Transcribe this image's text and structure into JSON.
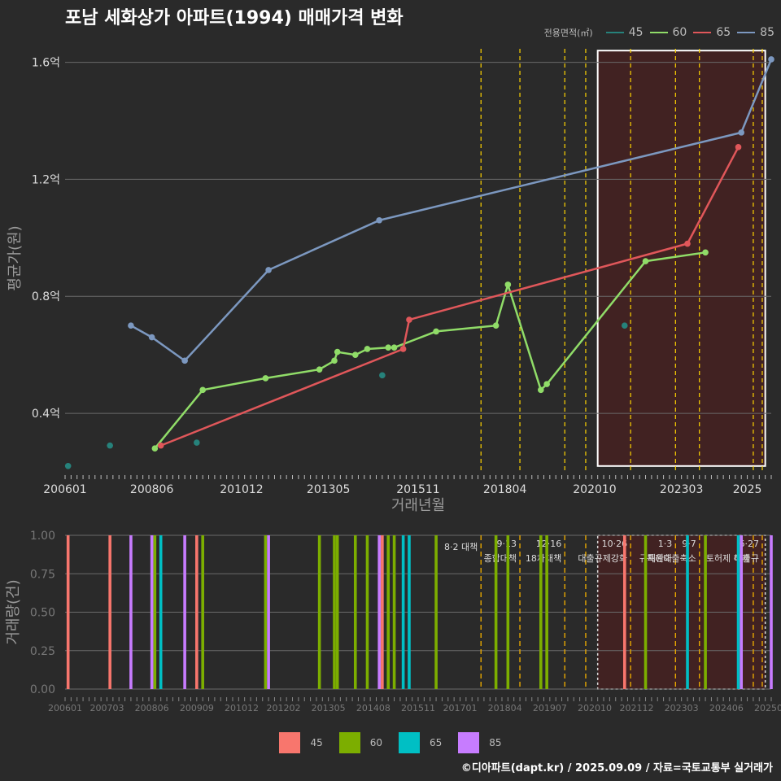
{
  "title": "포남 세화상가 아파트(1994) 매매가격 변화",
  "credit": "©디아파트(dapt.kr) / 2025.09.09 / 자료=국토교통부 실거래가",
  "legend_top_title": "전용면적(㎡)",
  "colors": {
    "top": {
      "45": "#26827b",
      "60": "#90dc68",
      "65": "#e0575a",
      "85": "#7c98c0"
    },
    "bottom": {
      "45": "#f8766d",
      "60": "#7cae00",
      "65": "#00bfc4",
      "85": "#c77cff"
    },
    "policy_line": "#ffd400",
    "highlight_fill": "#4a2020",
    "highlight_stroke": "#ffffff"
  },
  "chart_data": [
    {
      "type": "line",
      "ylabel": "평균가(원)",
      "xlabel": "거래년월",
      "x_ticks": [
        "200601",
        "200806",
        "201012",
        "201305",
        "201511",
        "201804",
        "202010",
        "202303",
        "2025"
      ],
      "y_ticks": [
        "0.4억",
        "0.8억",
        "1.2억",
        "1.6억"
      ],
      "y_tick_values": [
        0.4,
        0.8,
        1.2,
        1.6
      ],
      "ylim": [
        0.2,
        1.66
      ],
      "xlim": [
        "2006-01",
        "2025-09"
      ],
      "grid": true,
      "series": [
        {
          "name": "45",
          "mode": "points",
          "points": [
            [
              "2006-02",
              0.22
            ],
            [
              "2007-04",
              0.29
            ],
            [
              "2009-09",
              0.3
            ],
            [
              "2014-11",
              0.53
            ],
            [
              "2021-08",
              0.7
            ]
          ]
        },
        {
          "name": "60",
          "mode": "line",
          "points": [
            [
              "2008-07",
              0.28
            ],
            [
              "2009-11",
              0.48
            ],
            [
              "2011-08",
              0.52
            ],
            [
              "2013-02",
              0.55
            ],
            [
              "2013-07",
              0.58
            ],
            [
              "2013-08",
              0.61
            ],
            [
              "2014-02",
              0.6
            ],
            [
              "2014-06",
              0.62
            ],
            [
              "2015-01",
              0.625
            ],
            [
              "2015-03",
              0.625
            ],
            [
              "2016-05",
              0.68
            ],
            [
              "2018-01",
              0.7
            ],
            [
              "2018-05",
              0.84
            ],
            [
              "2019-04",
              0.48
            ],
            [
              "2019-06",
              0.5
            ],
            [
              "2022-03",
              0.92
            ],
            [
              "2023-11",
              0.95
            ]
          ]
        },
        {
          "name": "65",
          "mode": "line",
          "points": [
            [
              "2008-09",
              0.29
            ],
            [
              "2015-06",
              0.62
            ],
            [
              "2015-08",
              0.72
            ],
            [
              "2023-05",
              0.98
            ],
            [
              "2024-10",
              1.31
            ]
          ]
        },
        {
          "name": "85",
          "mode": "line",
          "points": [
            [
              "2007-11",
              0.7
            ],
            [
              "2008-06",
              0.66
            ],
            [
              "2009-05",
              0.58
            ],
            [
              "2011-09",
              0.89
            ],
            [
              "2014-10",
              1.06
            ],
            [
              "2024-11",
              1.36
            ],
            [
              "2025-09",
              1.61
            ]
          ]
        }
      ]
    },
    {
      "type": "bar",
      "ylabel": "거래량(건)",
      "y_ticks": [
        "0.00",
        "0.25",
        "0.50",
        "0.75",
        "1.00"
      ],
      "y_tick_values": [
        0,
        0.25,
        0.5,
        0.75,
        1.0
      ],
      "ylim": [
        0,
        1
      ],
      "x_ticks": [
        "200601",
        "200703",
        "200806",
        "200909",
        "201012",
        "201202",
        "201305",
        "201408",
        "201511",
        "201701",
        "201804",
        "201907",
        "202010",
        "202112",
        "202303",
        "202406",
        "202509"
      ],
      "series": [
        {
          "name": "45",
          "x": [
            "2006-02",
            "2007-04",
            "2009-09",
            "2014-11",
            "2021-08"
          ],
          "values": [
            1,
            1,
            1,
            1,
            1
          ]
        },
        {
          "name": "60",
          "x": [
            "2008-07",
            "2009-11",
            "2011-08",
            "2013-02",
            "2013-07",
            "2013-08",
            "2014-02",
            "2014-06",
            "2015-01",
            "2015-03",
            "2016-05",
            "2018-01",
            "2018-05",
            "2019-04",
            "2019-06",
            "2022-03",
            "2023-11"
          ],
          "values": [
            1,
            1,
            1,
            1,
            1,
            1,
            1,
            1,
            1,
            1,
            1,
            1,
            1,
            1,
            1,
            1,
            1
          ]
        },
        {
          "name": "65",
          "x": [
            "2008-09",
            "2015-06",
            "2015-08",
            "2023-05",
            "2024-10"
          ],
          "values": [
            1,
            1,
            1,
            1,
            1
          ]
        },
        {
          "name": "85",
          "x": [
            "2007-11",
            "2008-06",
            "2009-05",
            "2011-09",
            "2014-10",
            "2024-11",
            "2025-09"
          ],
          "values": [
            1,
            1,
            1,
            1,
            1,
            1,
            1
          ]
        }
      ]
    }
  ],
  "policy_events": [
    {
      "date": "2017-08",
      "label": "8·2 대책",
      "line2": ""
    },
    {
      "date": "2018-09",
      "label": "9·13",
      "line2": "종합대책"
    },
    {
      "date": "2019-12",
      "label": "12·16",
      "line2": "18차대책"
    },
    {
      "date": "2020-07",
      "label": "",
      "line2": ""
    },
    {
      "date": "2021-10",
      "label": "10·26",
      "line2": "대출규제강화"
    },
    {
      "date": "2023-01",
      "label": "1·3",
      "line2": "규제완화"
    },
    {
      "date": "2023-09",
      "label": "9·7",
      "line2": "특례대출축소"
    },
    {
      "date": "2025-03",
      "label": "",
      "line2": "토허제 해제"
    },
    {
      "date": "2025-06",
      "label": "6·27",
      "line2": "대출규"
    }
  ],
  "highlight_range": [
    "2020-11",
    "2025-07"
  ]
}
